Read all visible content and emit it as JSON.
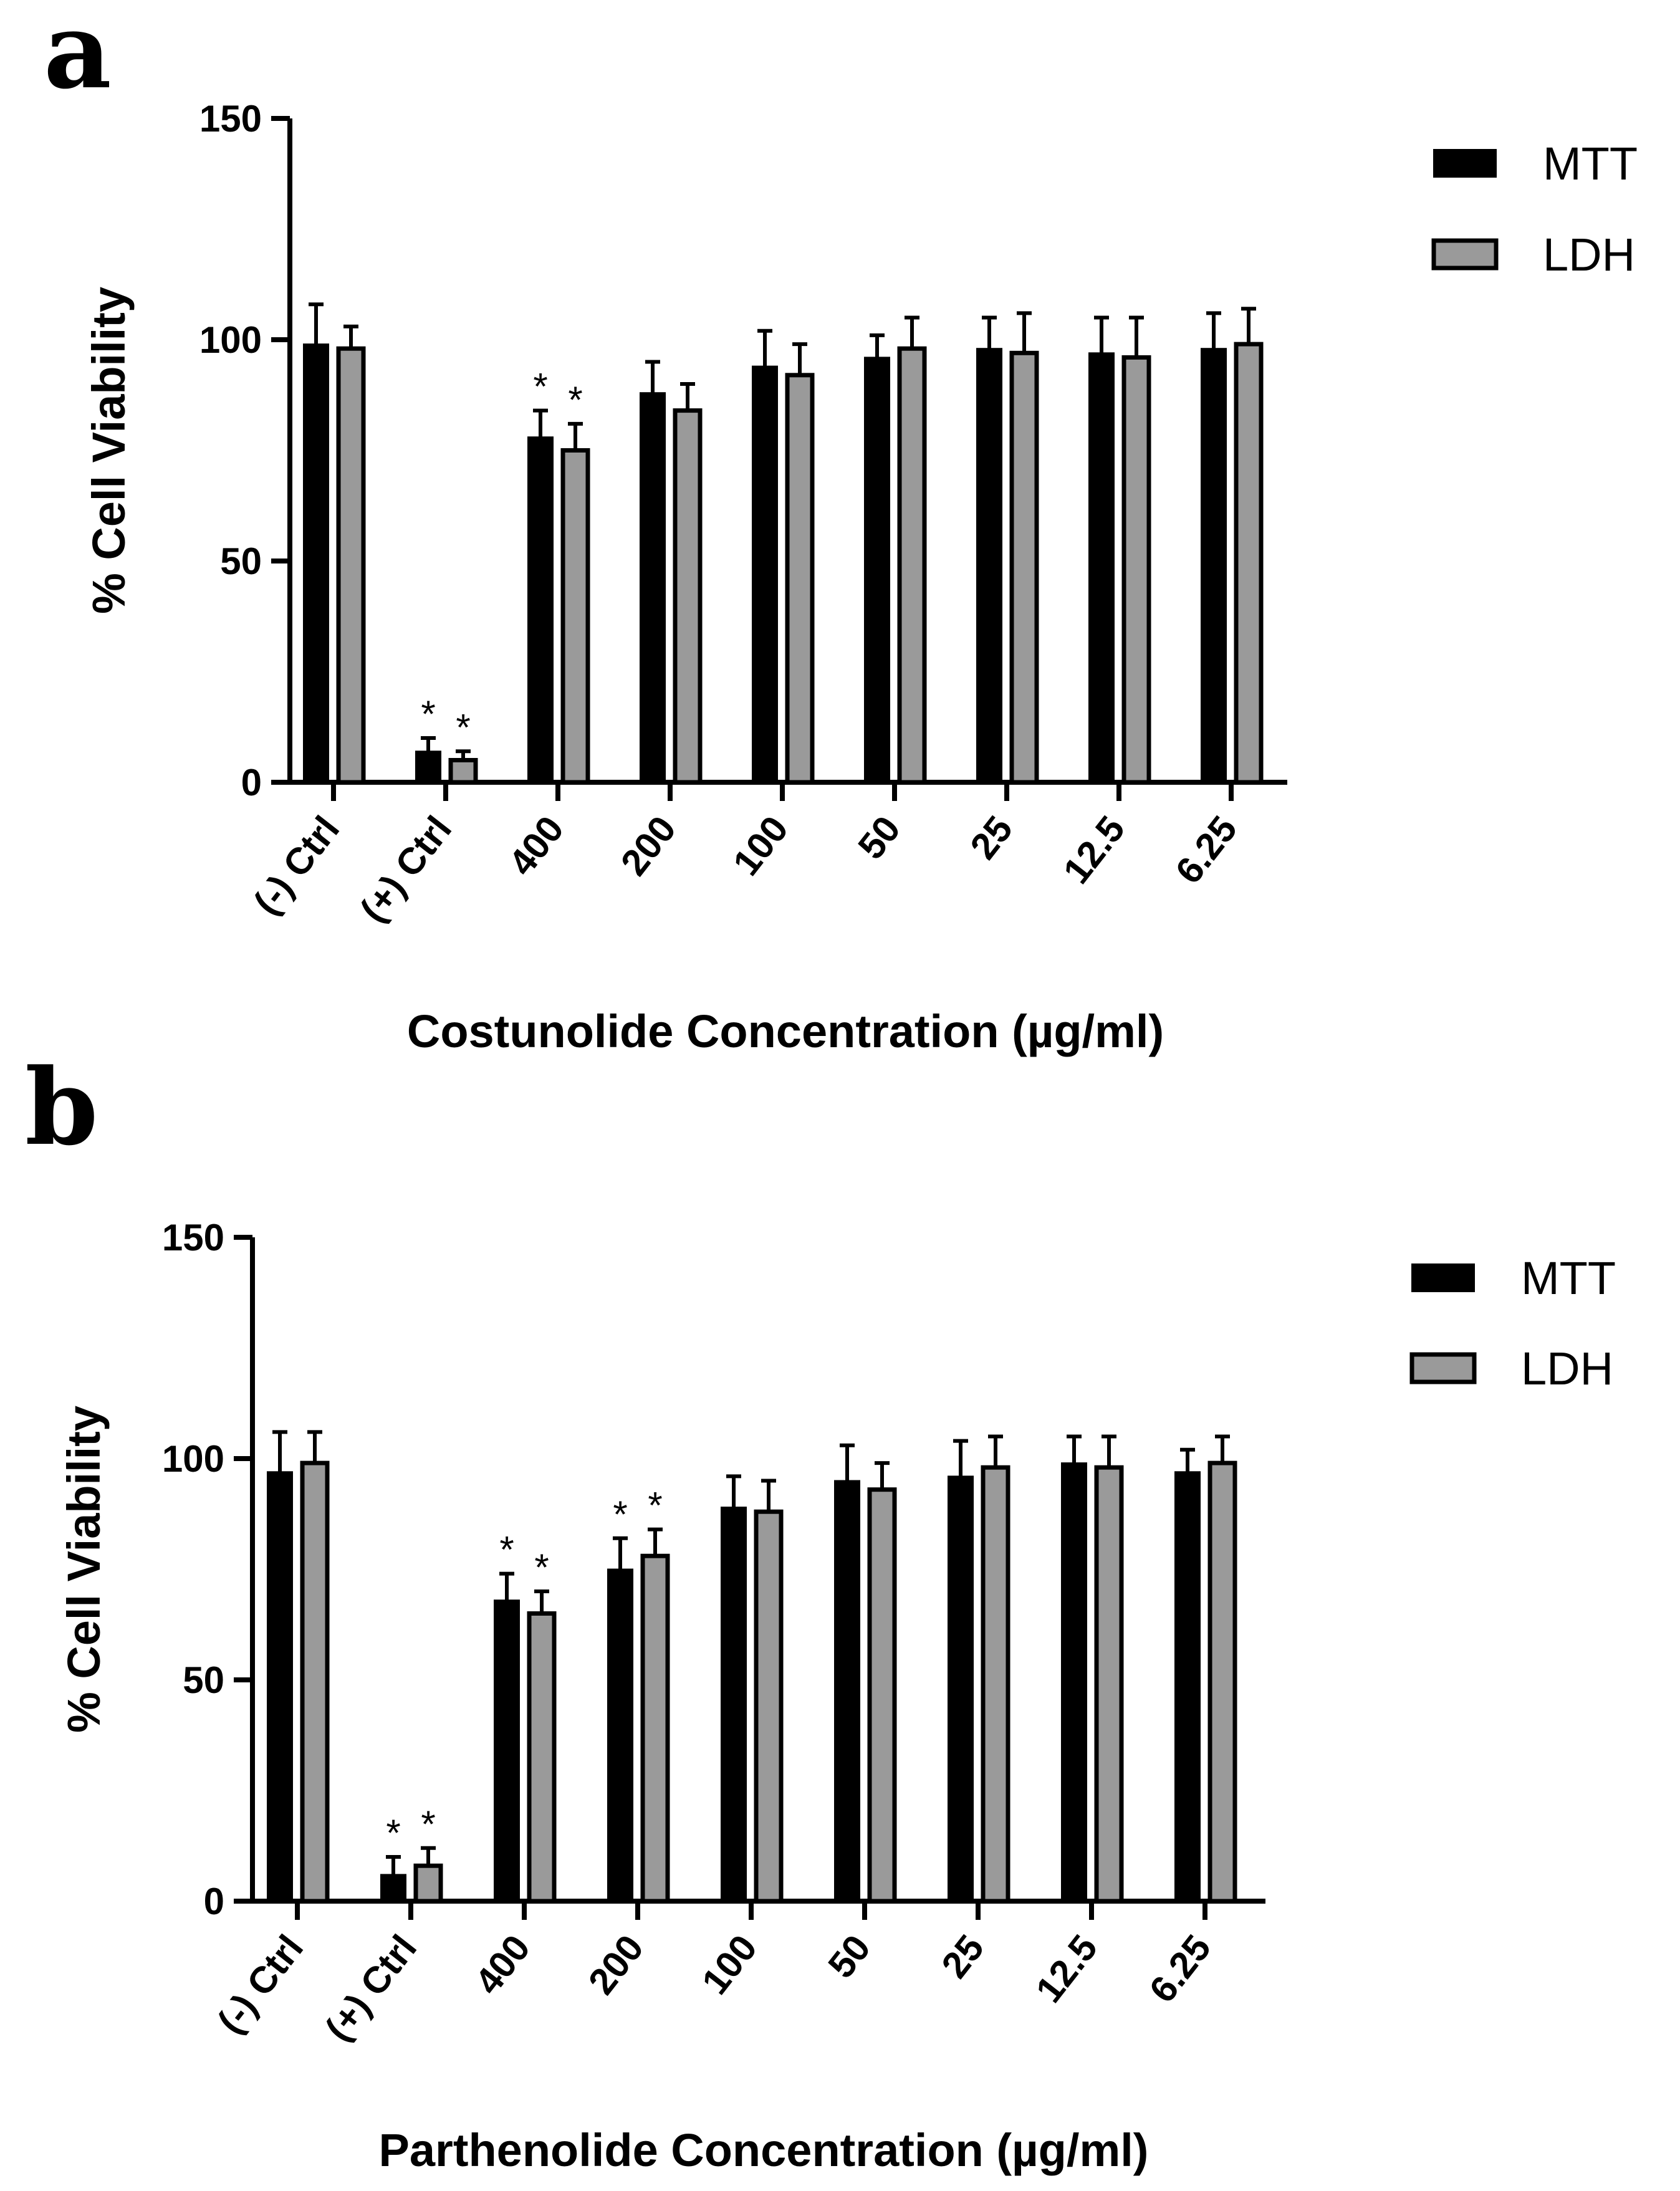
{
  "colors": {
    "mtt": "#000000",
    "ldh": "#9a9a9a",
    "axis": "#000000"
  },
  "chart_data": [
    {
      "panel": "a",
      "type": "bar",
      "title": "",
      "xlabel": "Costunolide Concentration (µg/ml)",
      "ylabel": "% Cell Viability",
      "ylim": [
        0,
        150
      ],
      "yticks": [
        "0",
        "50",
        "100",
        "150"
      ],
      "categories": [
        "(-) Ctrl",
        "(+) Ctrl",
        "400",
        "200",
        "100",
        "50",
        "25",
        "12.5",
        "6.25"
      ],
      "series": [
        {
          "name": "MTT",
          "values": [
            99,
            7,
            78,
            88,
            94,
            96,
            98,
            97,
            98
          ],
          "errors": [
            9,
            3,
            6,
            7,
            8,
            5,
            7,
            8,
            8
          ],
          "stars": [
            false,
            true,
            true,
            false,
            false,
            false,
            false,
            false,
            false
          ]
        },
        {
          "name": "LDH",
          "values": [
            98,
            5,
            75,
            84,
            92,
            98,
            97,
            96,
            99
          ],
          "errors": [
            5,
            2,
            6,
            6,
            7,
            7,
            9,
            9,
            8
          ],
          "stars": [
            false,
            true,
            true,
            false,
            false,
            false,
            false,
            false,
            false
          ]
        }
      ],
      "star_symbol": "*",
      "legend": [
        "MTT",
        "LDH"
      ],
      "legend_position": "top-right"
    },
    {
      "panel": "b",
      "type": "bar",
      "title": "",
      "xlabel": "Parthenolide Concentration (µg/ml)",
      "ylabel": "% Cell Viability",
      "ylim": [
        0,
        150
      ],
      "yticks": [
        "0",
        "50",
        "100",
        "150"
      ],
      "categories": [
        "(-) Ctrl",
        "(+) Ctrl",
        "400",
        "200",
        "100",
        "50",
        "25",
        "12.5",
        "6.25"
      ],
      "series": [
        {
          "name": "MTT",
          "values": [
            97,
            6,
            68,
            75,
            89,
            95,
            96,
            99,
            97
          ],
          "errors": [
            9,
            4,
            6,
            7,
            7,
            8,
            8,
            6,
            5
          ],
          "stars": [
            false,
            true,
            true,
            true,
            false,
            false,
            false,
            false,
            false
          ]
        },
        {
          "name": "LDH",
          "values": [
            99,
            8,
            65,
            78,
            88,
            93,
            98,
            98,
            99
          ],
          "errors": [
            7,
            4,
            5,
            6,
            7,
            6,
            7,
            7,
            6
          ],
          "stars": [
            false,
            true,
            true,
            true,
            false,
            false,
            false,
            false,
            false
          ]
        }
      ],
      "star_symbol": "*",
      "legend": [
        "MTT",
        "LDH"
      ],
      "legend_position": "top-right"
    }
  ]
}
